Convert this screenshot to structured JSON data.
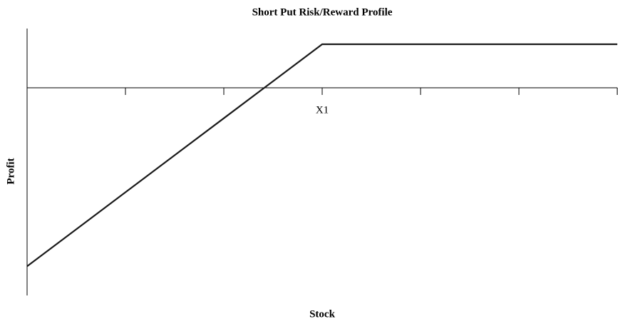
{
  "chart_data": {
    "type": "line",
    "title": "Short Put Risk/Reward Profile",
    "x_label": "Stock",
    "y_label": "Profit",
    "categories": [
      null,
      null,
      null,
      "X1",
      null,
      null,
      null
    ],
    "series": [
      {
        "name": null,
        "color": "#1a1a1a",
        "values": [
          -4.1,
          -2.4,
          -0.7,
          1,
          1,
          1,
          1
        ]
      }
    ],
    "ylim": [
      -4.77,
      1.36
    ],
    "grid": false
  }
}
